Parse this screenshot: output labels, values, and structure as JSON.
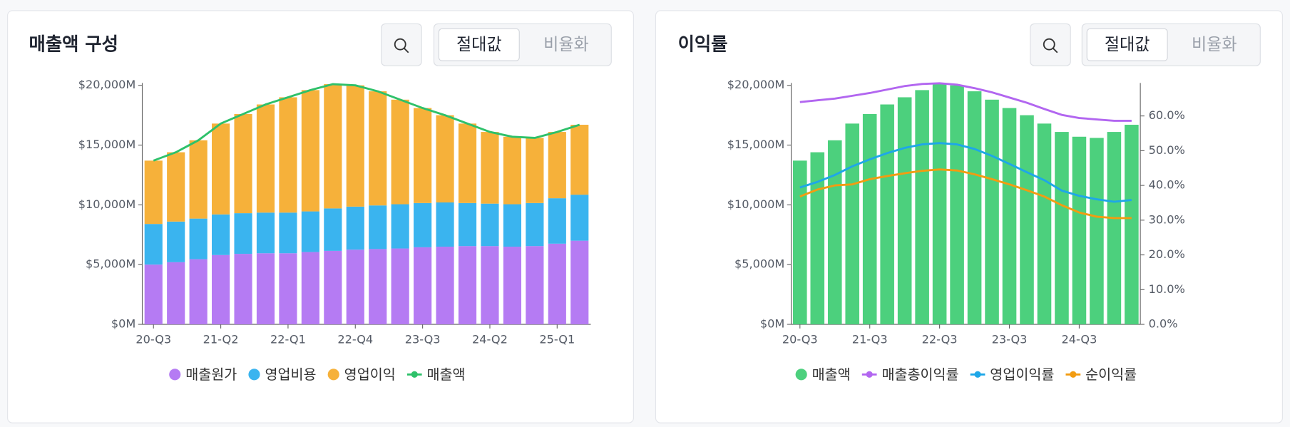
{
  "chart_data": [
    {
      "type": "stacked-bar-line",
      "title": "매출액 구성",
      "toggle": [
        "절대값",
        "비율화"
      ],
      "categories": [
        "20-Q3",
        null,
        null,
        "21-Q2",
        null,
        null,
        "22-Q1",
        null,
        null,
        "22-Q4",
        null,
        null,
        "23-Q3",
        null,
        null,
        "24-Q2",
        null,
        null,
        "25-Q1",
        null
      ],
      "ylim": [
        0,
        20200
      ],
      "yticks": [
        {
          "value": 0,
          "label": "$0M"
        },
        {
          "value": 5000,
          "label": "$5,000M"
        },
        {
          "value": 10000,
          "label": "$10,000M"
        },
        {
          "value": 15000,
          "label": "$15,000M"
        },
        {
          "value": 20000,
          "label": "$20,000M"
        }
      ],
      "grid": false,
      "series": [
        {
          "name": "매출원가",
          "kind": "bar",
          "color": "#b57bf3",
          "values": [
            5000,
            5200,
            5450,
            5800,
            5900,
            5950,
            5950,
            6050,
            6150,
            6250,
            6300,
            6350,
            6450,
            6500,
            6550,
            6550,
            6500,
            6550,
            6750,
            7000
          ]
        },
        {
          "name": "영업비용",
          "kind": "bar",
          "color": "#3ab4ef",
          "values": [
            3400,
            3400,
            3400,
            3400,
            3400,
            3400,
            3400,
            3400,
            3550,
            3600,
            3650,
            3700,
            3700,
            3700,
            3600,
            3550,
            3550,
            3600,
            3800,
            3850
          ]
        },
        {
          "name": "영업이익",
          "kind": "bar",
          "color": "#f6b13a",
          "values": [
            5300,
            5800,
            6550,
            7600,
            8300,
            9050,
            9650,
            10150,
            10400,
            10150,
            9550,
            8750,
            7950,
            7300,
            6650,
            6000,
            5650,
            5450,
            5550,
            5850
          ]
        },
        {
          "name": "매출액",
          "kind": "line",
          "color": "#2ec16a",
          "values": [
            13700,
            14400,
            15400,
            16800,
            17600,
            18400,
            19000,
            19600,
            20100,
            20000,
            19500,
            18800,
            18100,
            17500,
            16800,
            16100,
            15700,
            15600,
            16100,
            16700
          ]
        }
      ]
    },
    {
      "type": "bar-line",
      "title": "이익률",
      "toggle": [
        "절대값",
        "비율화"
      ],
      "categories": [
        "20-Q3",
        null,
        null,
        null,
        "21-Q3",
        null,
        null,
        null,
        "22-Q3",
        null,
        null,
        null,
        "23-Q3",
        null,
        null,
        null,
        "24-Q3",
        null,
        null,
        null
      ],
      "ylim": [
        0,
        20200
      ],
      "yticks": [
        {
          "value": 0,
          "label": "$0M"
        },
        {
          "value": 5000,
          "label": "$5,000M"
        },
        {
          "value": 10000,
          "label": "$10,000M"
        },
        {
          "value": 15000,
          "label": "$15,000M"
        },
        {
          "value": 20000,
          "label": "$20,000M"
        }
      ],
      "y2lim": [
        0,
        69.5
      ],
      "y2ticks": [
        {
          "value": 0,
          "label": "0.0%"
        },
        {
          "value": 10,
          "label": "10.0%"
        },
        {
          "value": 20,
          "label": "20.0%"
        },
        {
          "value": 30,
          "label": "30.0%"
        },
        {
          "value": 40,
          "label": "40.0%"
        },
        {
          "value": 50,
          "label": "50.0%"
        },
        {
          "value": 60,
          "label": "60.0%"
        }
      ],
      "grid": false,
      "series": [
        {
          "name": "매출액",
          "kind": "bar",
          "color": "#4cd07d",
          "values": [
            13700,
            14400,
            15400,
            16800,
            17600,
            18400,
            19000,
            19600,
            20100,
            20000,
            19500,
            18800,
            18100,
            17500,
            16800,
            16100,
            15700,
            15600,
            16100,
            16700
          ]
        },
        {
          "name": "매출총이익률",
          "kind": "line",
          "axis": "y2",
          "color": "#b266f0",
          "values": [
            64.0,
            64.5,
            65.0,
            65.8,
            66.6,
            67.6,
            68.6,
            69.2,
            69.4,
            69.0,
            68.0,
            66.8,
            65.3,
            63.8,
            62.0,
            60.3,
            59.4,
            59.0,
            58.6,
            58.6
          ]
        },
        {
          "name": "영업이익률",
          "kind": "line",
          "axis": "y2",
          "color": "#1ea7e8",
          "values": [
            39.4,
            41.0,
            43.0,
            45.5,
            47.5,
            49.3,
            50.8,
            51.8,
            52.2,
            51.8,
            50.5,
            48.5,
            46.2,
            43.8,
            41.5,
            38.5,
            37.0,
            36.0,
            35.3,
            35.8
          ]
        },
        {
          "name": "순이익률",
          "kind": "line",
          "axis": "y2",
          "color": "#f29c11",
          "values": [
            36.8,
            38.8,
            40.0,
            40.3,
            41.8,
            42.7,
            43.5,
            44.2,
            44.6,
            44.3,
            43.2,
            41.8,
            40.3,
            38.6,
            36.8,
            34.3,
            32.2,
            31.0,
            30.6,
            30.6
          ]
        }
      ]
    }
  ]
}
